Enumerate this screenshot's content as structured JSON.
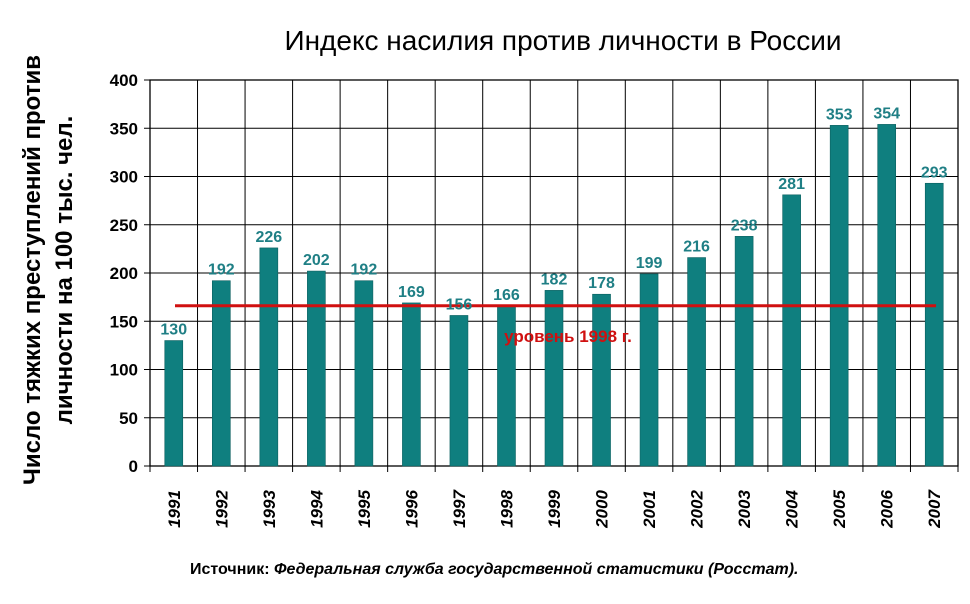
{
  "chart_data": {
    "type": "bar",
    "title": "Индекс насилия против личности в России",
    "ylabel_line1": "Число тяжких преступлений против",
    "ylabel_line2": "личности на 100 тыс. чел.",
    "categories": [
      "1991",
      "1992",
      "1993",
      "1994",
      "1995",
      "1996",
      "1997",
      "1998",
      "1999",
      "2000",
      "2001",
      "2002",
      "2003",
      "2004",
      "2005",
      "2006",
      "2007"
    ],
    "values": [
      130,
      192,
      226,
      202,
      192,
      169,
      156,
      166,
      182,
      178,
      199,
      216,
      238,
      281,
      353,
      354,
      293
    ],
    "ylim": [
      0,
      400
    ],
    "yticks": [
      0,
      50,
      100,
      150,
      200,
      250,
      300,
      350,
      400
    ],
    "grid": true,
    "bar_color": "#0f7f7f",
    "label_color": "#1f7f85",
    "reference_line": {
      "value": 166,
      "label": "уровень 1998 г.",
      "color": "#d01010"
    }
  },
  "source": {
    "prefix": "Источник:",
    "text": "Федеральная служба государственной статистики (Росстат)."
  }
}
